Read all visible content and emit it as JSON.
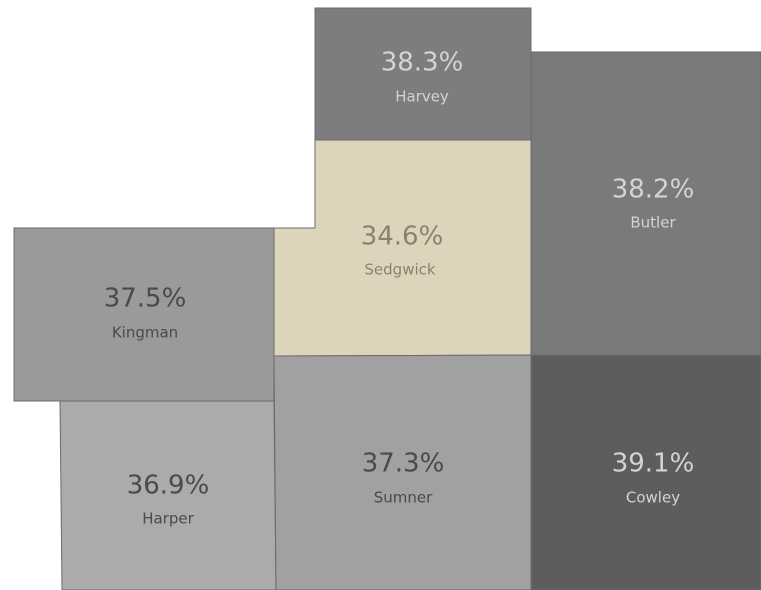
{
  "regions": [
    {
      "name": "Harvey",
      "value": "38.3%",
      "color": "#7d7d7d"
    },
    {
      "name": "Butler",
      "value": "38.2%",
      "color": "#7a7a7a"
    },
    {
      "name": "Sedgwick",
      "value": "34.6%",
      "color": "#ddd5bb"
    },
    {
      "name": "Kingman",
      "value": "37.5%",
      "color": "#9a9a9a"
    },
    {
      "name": "Harper",
      "value": "36.9%",
      "color": "#ababab"
    },
    {
      "name": "Sumner",
      "value": "37.3%",
      "color": "#a1a1a1"
    },
    {
      "name": "Cowley",
      "value": "39.1%",
      "color": "#5d5d5d"
    }
  ]
}
